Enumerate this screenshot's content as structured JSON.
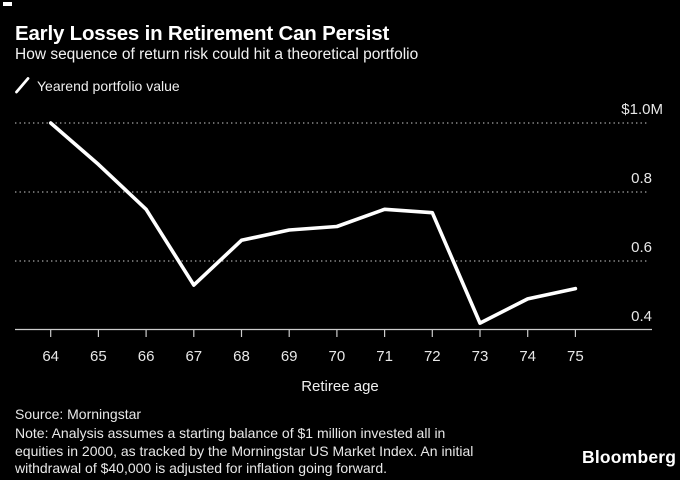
{
  "header": {
    "title": "Early Losses in Retirement Can Persist",
    "subtitle": "How sequence of return risk could hit a theoretical portfolio"
  },
  "legend": {
    "label": "Yearend portfolio value"
  },
  "chart_data": {
    "type": "line",
    "title": "Early Losses in Retirement Can Persist",
    "subtitle": "How sequence of return risk could hit a theoretical portfolio",
    "categories": [
      64,
      65,
      66,
      67,
      68,
      69,
      70,
      71,
      72,
      73,
      74,
      75
    ],
    "series": [
      {
        "name": "Yearend portfolio value",
        "values": [
          1.0,
          0.88,
          0.75,
          0.53,
          0.66,
          0.69,
          0.7,
          0.75,
          0.74,
          0.42,
          0.49,
          0.52
        ],
        "color": "#ffffff"
      }
    ],
    "xlabel": "Retiree age",
    "ylabel": "",
    "y_ticks": [
      {
        "value": 1.0,
        "label": "$1.0M"
      },
      {
        "value": 0.8,
        "label": "0.8"
      },
      {
        "value": 0.6,
        "label": "0.6"
      },
      {
        "value": 0.4,
        "label": "0.4"
      }
    ],
    "ylim": [
      0.4,
      1.02
    ],
    "xlim": [
      64,
      75
    ],
    "grid": "horizontal-dotted",
    "legend_position": "top-left",
    "units": "USD millions"
  },
  "footer": {
    "source": "Source: Morningstar",
    "note_lines": [
      "Note: Analysis assumes a starting balance of $1 million invested all in",
      "equities in 2000, as tracked by the Morningstar US Market Index. An initial",
      "withdrawal of $40,000 is adjusted for inflation going forward."
    ],
    "brand": "Bloomberg"
  },
  "colors": {
    "background": "#000000",
    "series_line": "#ffffff",
    "title_text": "#ffffff",
    "muted_text": "#e8e8e8",
    "gridline": "#8c8c8c",
    "axis": "#cccccc"
  }
}
